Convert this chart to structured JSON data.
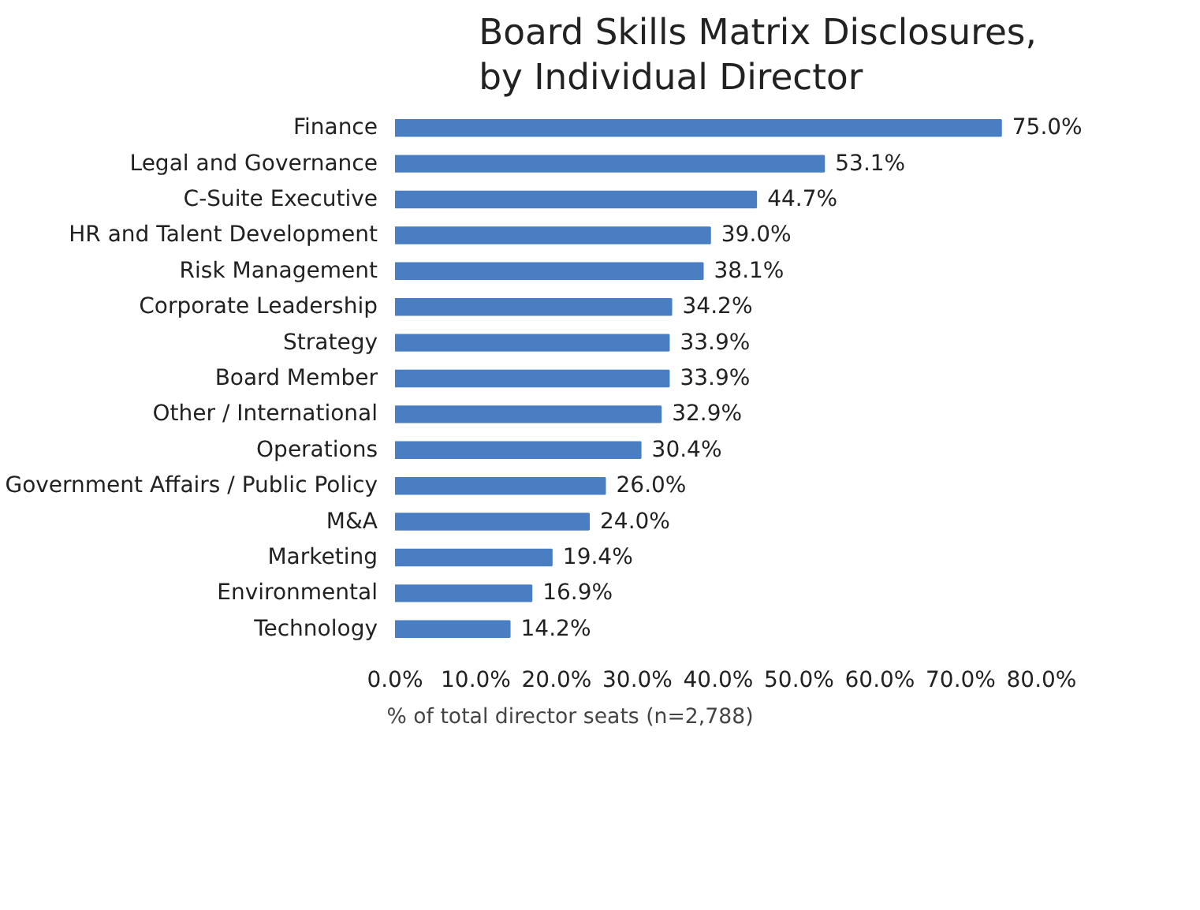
{
  "chart_data": {
    "type": "bar",
    "orientation": "horizontal",
    "title": "Board Skills Matrix Disclosures,\nby Individual Director",
    "categories": [
      "Finance",
      "Legal and Governance",
      "C-Suite Executive",
      "HR and Talent Development",
      "Risk Management",
      "Corporate Leadership",
      "Strategy",
      "Board Member",
      "Other / International",
      "Operations",
      "Government Affairs / Public Policy",
      "M&A",
      "Marketing",
      "Environmental",
      "Technology"
    ],
    "series": [
      {
        "name": "% of total director seats (n=2,788)",
        "color": "#4a7ec3",
        "values": [
          75.0,
          53.1,
          44.7,
          39.0,
          38.1,
          34.2,
          33.9,
          33.9,
          32.9,
          30.4,
          26.0,
          24.0,
          19.4,
          16.9,
          14.2
        ],
        "value_labels": [
          "75.0%",
          "53.1%",
          "44.7%",
          "39.0%",
          "38.1%",
          "34.2%",
          "33.9%",
          "33.9%",
          "32.9%",
          "30.4%",
          "26.0%",
          "24.0%",
          "19.4%",
          "16.9%",
          "14.2%"
        ]
      }
    ],
    "xlim": [
      0,
      80
    ],
    "xticks": [
      {
        "value": 0,
        "label": "0.0%"
      },
      {
        "value": 10,
        "label": "10.0%"
      },
      {
        "value": 20,
        "label": "20.0%"
      },
      {
        "value": 30,
        "label": "30.0%"
      },
      {
        "value": 40,
        "label": "40.0%"
      },
      {
        "value": 50,
        "label": "50.0%"
      },
      {
        "value": 60,
        "label": "60.0%"
      },
      {
        "value": 70,
        "label": "70.0%"
      },
      {
        "value": 80,
        "label": "80.0%"
      }
    ],
    "grid": false,
    "legend": "bottom"
  }
}
